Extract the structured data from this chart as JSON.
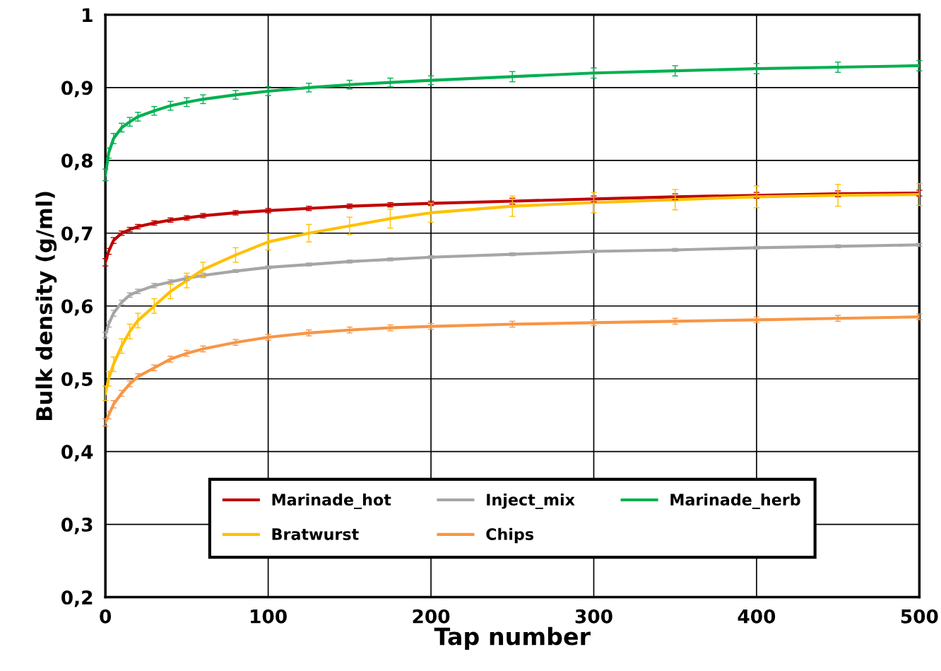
{
  "chart_data": {
    "type": "line",
    "xlabel": "Tap number",
    "ylabel": "Bulk density (g/ml)",
    "x": [
      0,
      2,
      5,
      10,
      15,
      20,
      30,
      40,
      50,
      60,
      80,
      100,
      125,
      150,
      175,
      200,
      250,
      300,
      350,
      400,
      450,
      500
    ],
    "xlim": [
      0,
      500
    ],
    "xticks": [
      0,
      100,
      200,
      300,
      400,
      500
    ],
    "ylim": [
      0.2,
      1
    ],
    "yticks": [
      {
        "value": 0.2,
        "label": "0,2"
      },
      {
        "value": 0.3,
        "label": "0,3"
      },
      {
        "value": 0.4,
        "label": "0,4"
      },
      {
        "value": 0.5,
        "label": "0,5"
      },
      {
        "value": 0.6,
        "label": "0,6"
      },
      {
        "value": 0.7,
        "label": "0,7"
      },
      {
        "value": 0.8,
        "label": "0,8"
      },
      {
        "value": 0.9,
        "label": "0,9"
      },
      {
        "value": 1,
        "label": "1"
      }
    ],
    "grid": true,
    "legend": "bottom",
    "marker": "none",
    "line_style": "solid",
    "series": [
      {
        "name": "Marinade_hot",
        "color": "#c00000",
        "values": [
          0.66,
          0.675,
          0.69,
          0.7,
          0.705,
          0.709,
          0.714,
          0.718,
          0.721,
          0.724,
          0.728,
          0.731,
          0.734,
          0.737,
          0.739,
          0.741,
          0.744,
          0.747,
          0.75,
          0.752,
          0.754,
          0.755
        ],
        "errors": [
          0.005,
          0.004,
          0.004,
          0.003,
          0.003,
          0.003,
          0.003,
          0.003,
          0.003,
          0.003,
          0.003,
          0.003,
          0.003,
          0.003,
          0.003,
          0.003,
          0.004,
          0.004,
          0.004,
          0.004,
          0.004,
          0.004
        ]
      },
      {
        "name": "Inject_mix",
        "color": "#a6a6a6",
        "values": [
          0.56,
          0.575,
          0.59,
          0.605,
          0.615,
          0.62,
          0.628,
          0.633,
          0.638,
          0.642,
          0.648,
          0.653,
          0.657,
          0.661,
          0.664,
          0.667,
          0.671,
          0.675,
          0.677,
          0.68,
          0.682,
          0.684
        ],
        "errors": [
          0.004,
          0.004,
          0.004,
          0.003,
          0.003,
          0.003,
          0.003,
          0.003,
          0.003,
          0.003,
          0.002,
          0.002,
          0.002,
          0.002,
          0.002,
          0.002,
          0.002,
          0.002,
          0.002,
          0.002,
          0.002,
          0.002
        ]
      },
      {
        "name": "Marinade_herb",
        "color": "#00b050",
        "values": [
          0.78,
          0.81,
          0.83,
          0.845,
          0.853,
          0.86,
          0.868,
          0.875,
          0.88,
          0.884,
          0.89,
          0.895,
          0.9,
          0.904,
          0.907,
          0.91,
          0.915,
          0.92,
          0.923,
          0.926,
          0.928,
          0.93
        ],
        "errors": [
          0.008,
          0.007,
          0.007,
          0.006,
          0.006,
          0.006,
          0.006,
          0.006,
          0.006,
          0.006,
          0.006,
          0.006,
          0.006,
          0.006,
          0.006,
          0.006,
          0.007,
          0.007,
          0.007,
          0.007,
          0.007,
          0.007
        ]
      },
      {
        "name": "Bratwurst",
        "color": "#ffc000",
        "values": [
          0.48,
          0.5,
          0.52,
          0.545,
          0.565,
          0.58,
          0.6,
          0.62,
          0.635,
          0.65,
          0.67,
          0.688,
          0.7,
          0.71,
          0.72,
          0.728,
          0.737,
          0.742,
          0.746,
          0.75,
          0.752,
          0.753
        ],
        "errors": [
          0.01,
          0.01,
          0.01,
          0.01,
          0.01,
          0.01,
          0.01,
          0.01,
          0.01,
          0.01,
          0.01,
          0.011,
          0.012,
          0.012,
          0.013,
          0.013,
          0.014,
          0.014,
          0.014,
          0.015,
          0.015,
          0.015
        ]
      },
      {
        "name": "Chips",
        "color": "#f79646",
        "values": [
          0.44,
          0.45,
          0.465,
          0.48,
          0.493,
          0.503,
          0.515,
          0.527,
          0.535,
          0.541,
          0.55,
          0.557,
          0.563,
          0.567,
          0.57,
          0.572,
          0.575,
          0.577,
          0.579,
          0.581,
          0.583,
          0.585
        ],
        "errors": [
          0.005,
          0.005,
          0.005,
          0.004,
          0.004,
          0.004,
          0.004,
          0.004,
          0.004,
          0.004,
          0.004,
          0.004,
          0.004,
          0.004,
          0.004,
          0.004,
          0.004,
          0.004,
          0.004,
          0.004,
          0.004,
          0.004
        ]
      }
    ]
  }
}
